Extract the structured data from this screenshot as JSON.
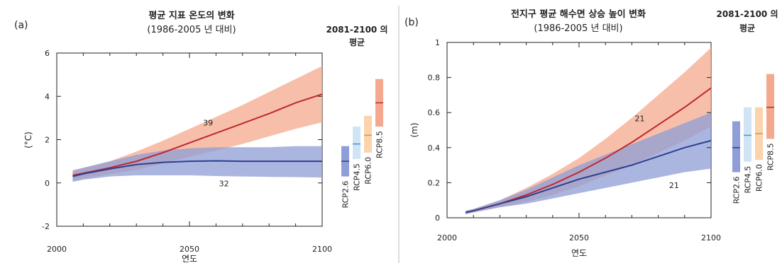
{
  "figure": {
    "panel_label_a": "(a)",
    "panel_label_b": "(b)"
  },
  "colors": {
    "rcp26_line": "#2d3f8f",
    "rcp26_band": "#8f9ed6",
    "rcp85_line": "#c0282d",
    "rcp85_band": "#f4a98e",
    "rcp45_band": "#cfe5f5",
    "rcp45_line": "#4e92c8",
    "rcp60_band": "#fbd3ad",
    "rcp60_line": "#ec8c3a",
    "axis": "#222222"
  },
  "chart_data": [
    {
      "type": "area",
      "panel": "a",
      "title": "평균 지표 온도의 변화",
      "subtitle": "(1986-2005 년 대비)",
      "xlabel": "연도",
      "ylabel": "(°C)",
      "xlim": [
        2000,
        2100
      ],
      "ylim": [
        -2,
        6
      ],
      "x_ticks": [
        2000,
        2050,
        2100
      ],
      "y_ticks": [
        -2,
        0,
        2,
        4,
        6
      ],
      "side_title": "2081-2100 의 평균",
      "series": [
        {
          "key": "rcp85",
          "x": [
            2006,
            2010,
            2020,
            2030,
            2040,
            2050,
            2060,
            2070,
            2080,
            2090,
            2100
          ],
          "mean": [
            0.35,
            0.45,
            0.7,
            1.0,
            1.4,
            1.85,
            2.3,
            2.75,
            3.2,
            3.7,
            4.1
          ],
          "lower": [
            0.1,
            0.2,
            0.4,
            0.6,
            0.9,
            1.2,
            1.5,
            1.8,
            2.15,
            2.5,
            2.8
          ],
          "upper": [
            0.6,
            0.7,
            1.0,
            1.45,
            1.95,
            2.5,
            3.05,
            3.6,
            4.2,
            4.8,
            5.4
          ],
          "model_count": "39",
          "model_count_pos": [
            2057,
            2.65
          ]
        },
        {
          "key": "rcp26",
          "x": [
            2006,
            2010,
            2020,
            2030,
            2040,
            2050,
            2060,
            2070,
            2080,
            2090,
            2100
          ],
          "mean": [
            0.3,
            0.42,
            0.65,
            0.85,
            0.95,
            1.0,
            1.02,
            1.0,
            1.0,
            1.0,
            1.0
          ],
          "lower": [
            0.05,
            0.15,
            0.3,
            0.35,
            0.35,
            0.35,
            0.32,
            0.3,
            0.28,
            0.27,
            0.25
          ],
          "upper": [
            0.55,
            0.7,
            1.0,
            1.3,
            1.5,
            1.6,
            1.65,
            1.65,
            1.65,
            1.7,
            1.7
          ],
          "model_count": "32",
          "model_count_pos": [
            2063,
            -0.15
          ]
        }
      ],
      "period_means": [
        {
          "label": "RCP2.6",
          "key": "rcp26",
          "low": 0.3,
          "mean": 1.0,
          "high": 1.7
        },
        {
          "label": "RCP4.5",
          "key": "rcp45",
          "low": 1.1,
          "mean": 1.8,
          "high": 2.6
        },
        {
          "label": "RCP6.0",
          "key": "rcp60",
          "low": 1.4,
          "mean": 2.2,
          "high": 3.1
        },
        {
          "label": "RCP8.5",
          "key": "rcp85",
          "low": 2.6,
          "mean": 3.7,
          "high": 4.8
        }
      ]
    },
    {
      "type": "area",
      "panel": "b",
      "title": "전지구 평균 해수면 상승 높이 변화",
      "subtitle": "(1986-2005 년 대비)",
      "xlabel": "연도",
      "ylabel": "(m)",
      "xlim": [
        2000,
        2100
      ],
      "ylim": [
        0,
        1
      ],
      "x_ticks": [
        2000,
        2050,
        2100
      ],
      "y_ticks": [
        0,
        0.2,
        0.4,
        0.6,
        0.8,
        1
      ],
      "side_title": "2081-2100 의 평균",
      "series": [
        {
          "key": "rcp85",
          "x": [
            2007,
            2010,
            2020,
            2030,
            2040,
            2050,
            2060,
            2070,
            2080,
            2090,
            2100
          ],
          "mean": [
            0.03,
            0.04,
            0.08,
            0.13,
            0.19,
            0.26,
            0.34,
            0.43,
            0.53,
            0.63,
            0.74
          ],
          "lower": [
            0.02,
            0.03,
            0.06,
            0.09,
            0.13,
            0.18,
            0.24,
            0.3,
            0.37,
            0.44,
            0.52
          ],
          "upper": [
            0.04,
            0.05,
            0.1,
            0.17,
            0.25,
            0.34,
            0.45,
            0.57,
            0.7,
            0.83,
            0.97
          ],
          "model_count": "21",
          "model_count_pos": [
            2073,
            0.55
          ]
        },
        {
          "key": "rcp26",
          "x": [
            2007,
            2010,
            2020,
            2030,
            2040,
            2050,
            2060,
            2070,
            2080,
            2090,
            2100
          ],
          "mean": [
            0.03,
            0.04,
            0.08,
            0.12,
            0.17,
            0.22,
            0.26,
            0.3,
            0.35,
            0.4,
            0.44
          ],
          "lower": [
            0.02,
            0.03,
            0.06,
            0.08,
            0.11,
            0.14,
            0.17,
            0.2,
            0.23,
            0.26,
            0.28
          ],
          "upper": [
            0.04,
            0.05,
            0.1,
            0.16,
            0.23,
            0.3,
            0.36,
            0.42,
            0.48,
            0.54,
            0.6
          ],
          "model_count": "21",
          "model_count_pos": [
            2086,
            0.17
          ]
        }
      ],
      "period_means": [
        {
          "label": "RCP2.6",
          "key": "rcp26",
          "low": 0.26,
          "mean": 0.4,
          "high": 0.55
        },
        {
          "label": "RCP4.5",
          "key": "rcp45",
          "low": 0.32,
          "mean": 0.47,
          "high": 0.63
        },
        {
          "label": "RCP6.0",
          "key": "rcp60",
          "low": 0.33,
          "mean": 0.48,
          "high": 0.63
        },
        {
          "label": "RCP8.5",
          "key": "rcp85",
          "low": 0.45,
          "mean": 0.63,
          "high": 0.82
        }
      ]
    }
  ]
}
